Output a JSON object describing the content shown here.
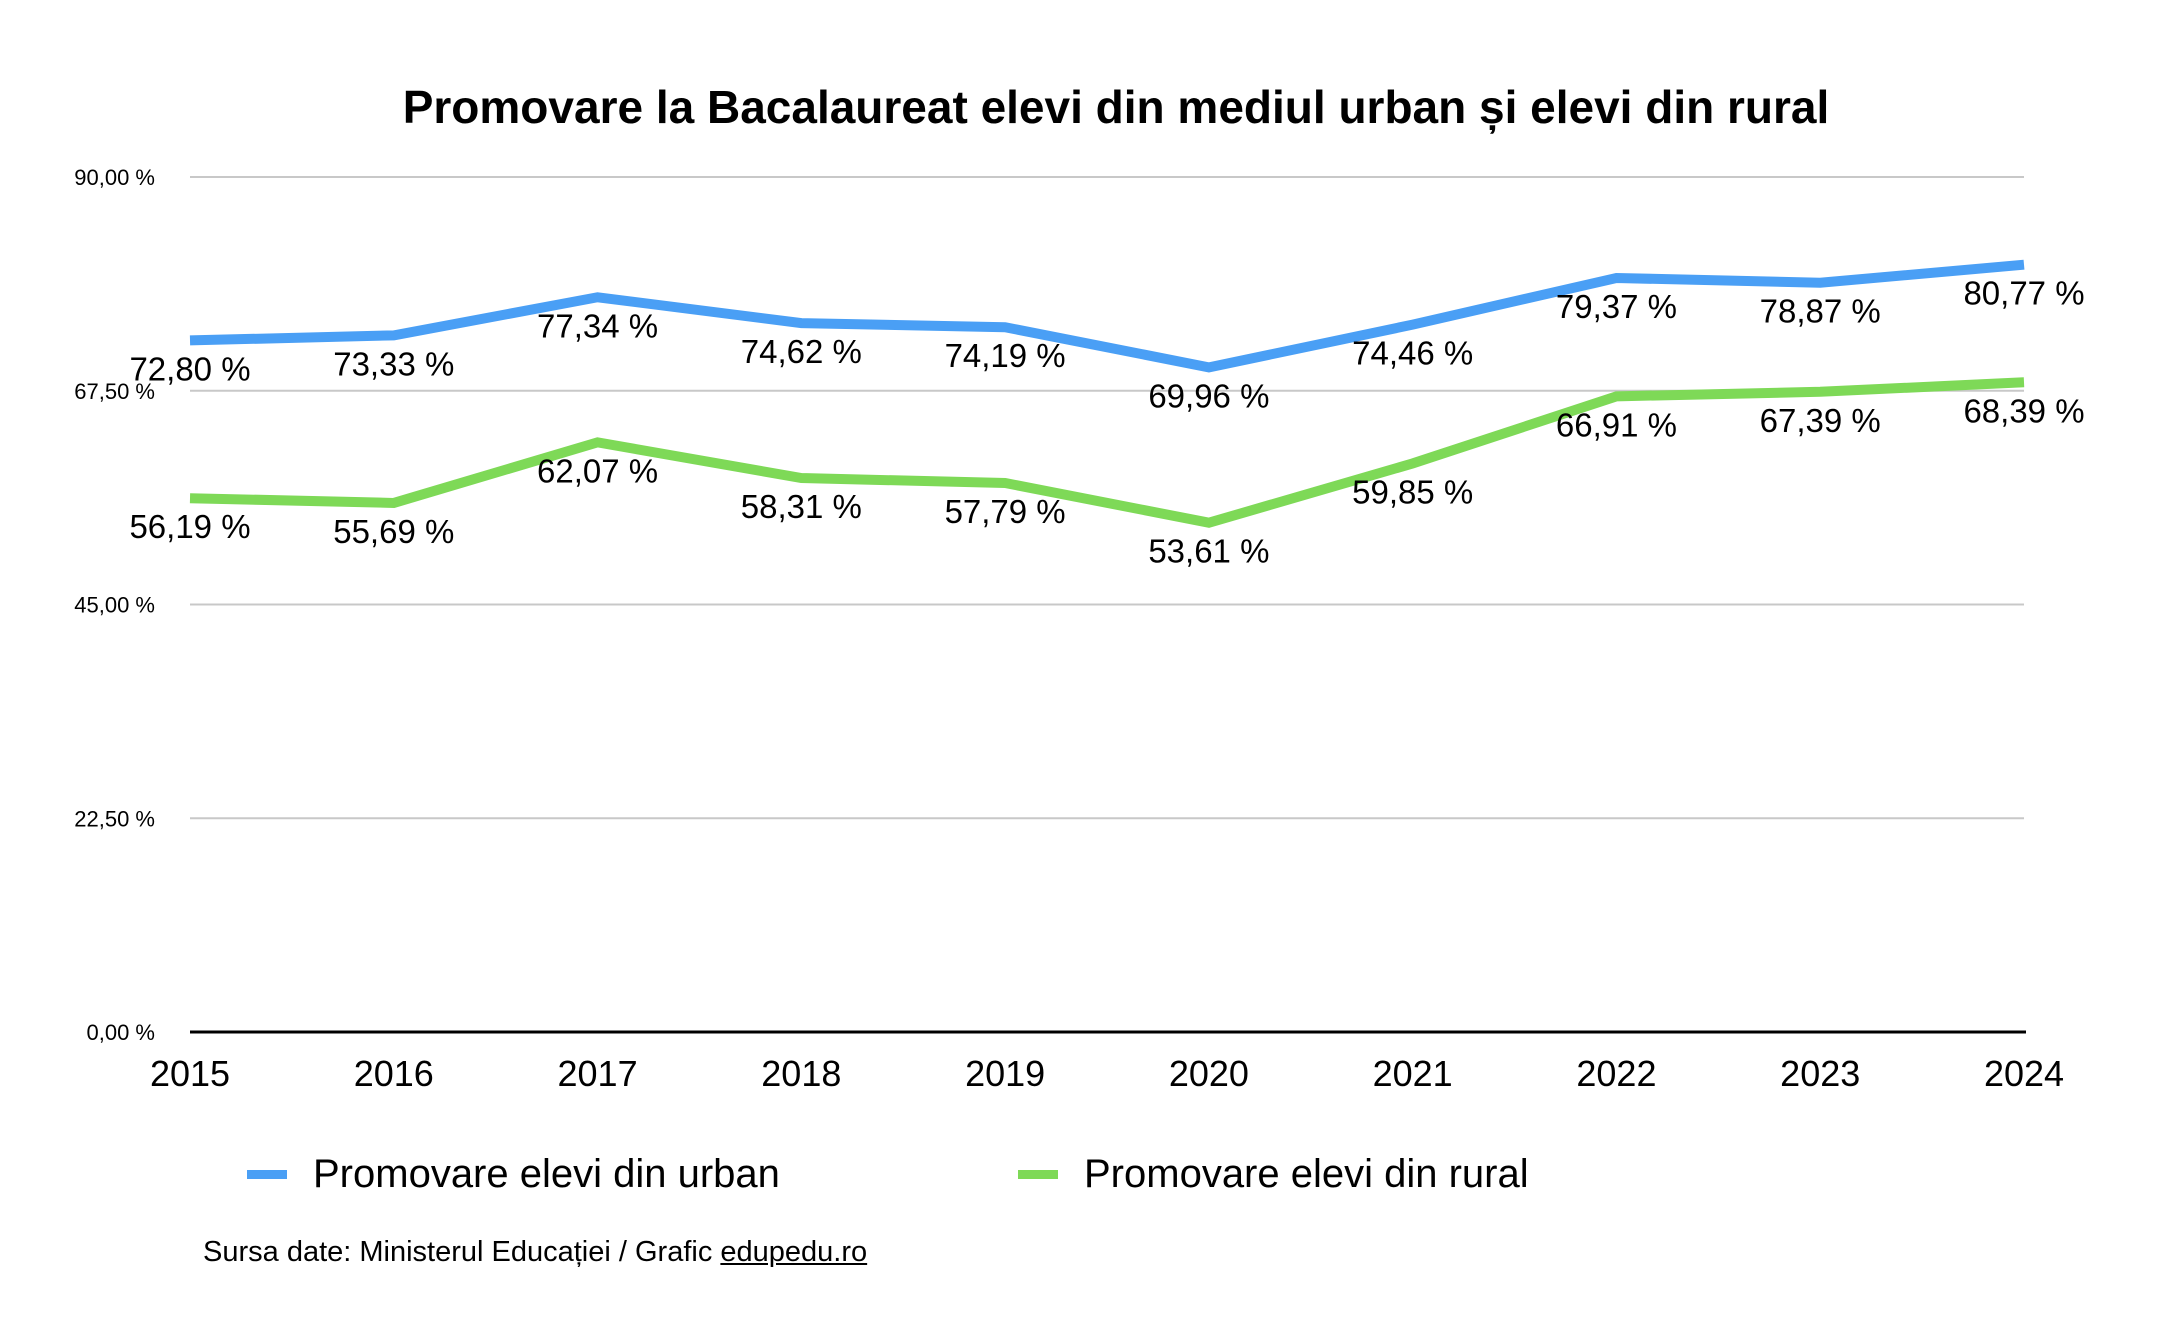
{
  "chart_data": {
    "type": "line",
    "title": "Promovare la Bacalaureat elevi din mediul urban și elevi din rural",
    "xlabel": "",
    "ylabel": "",
    "categories": [
      "2015",
      "2016",
      "2017",
      "2018",
      "2019",
      "2020",
      "2021",
      "2022",
      "2023",
      "2024"
    ],
    "ylim": [
      0,
      90
    ],
    "yticks": [
      0,
      22.5,
      45,
      67.5,
      90
    ],
    "ytick_labels": [
      "0,00 %",
      "22,50 %",
      "45,00 %",
      "67,50 %",
      "90,00 %"
    ],
    "grid": true,
    "legend_position": "bottom",
    "series": [
      {
        "name": "Promovare elevi din urban",
        "color": "#4A9FF5",
        "values": [
          72.8,
          73.33,
          77.34,
          74.62,
          74.19,
          69.96,
          74.46,
          79.37,
          78.87,
          80.77
        ],
        "labels": [
          "72,80 %",
          "73,33 %",
          "77,34 %",
          "74,62 %",
          "74,19 %",
          "69,96 %",
          "74,46 %",
          "79,37 %",
          "78,87 %",
          "80,77 %"
        ]
      },
      {
        "name": "Promovare elevi din rural",
        "color": "#7ED957",
        "values": [
          56.19,
          55.69,
          62.07,
          58.31,
          57.79,
          53.61,
          59.85,
          66.91,
          67.39,
          68.39
        ],
        "labels": [
          "56,19 %",
          "55,69 %",
          "62,07 %",
          "58,31 %",
          "57,79 %",
          "53,61 %",
          "59,85 %",
          "66,91 %",
          "67,39 %",
          "68,39 %"
        ]
      }
    ]
  },
  "legend": {
    "items": [
      {
        "label": "Promovare elevi din urban",
        "color": "#4A9FF5"
      },
      {
        "label": "Promovare elevi din rural",
        "color": "#7ED957"
      }
    ]
  },
  "source": {
    "prefix": "Sursa date: Ministerul Educației / Grafic ",
    "link_text": "edupedu.ro"
  }
}
